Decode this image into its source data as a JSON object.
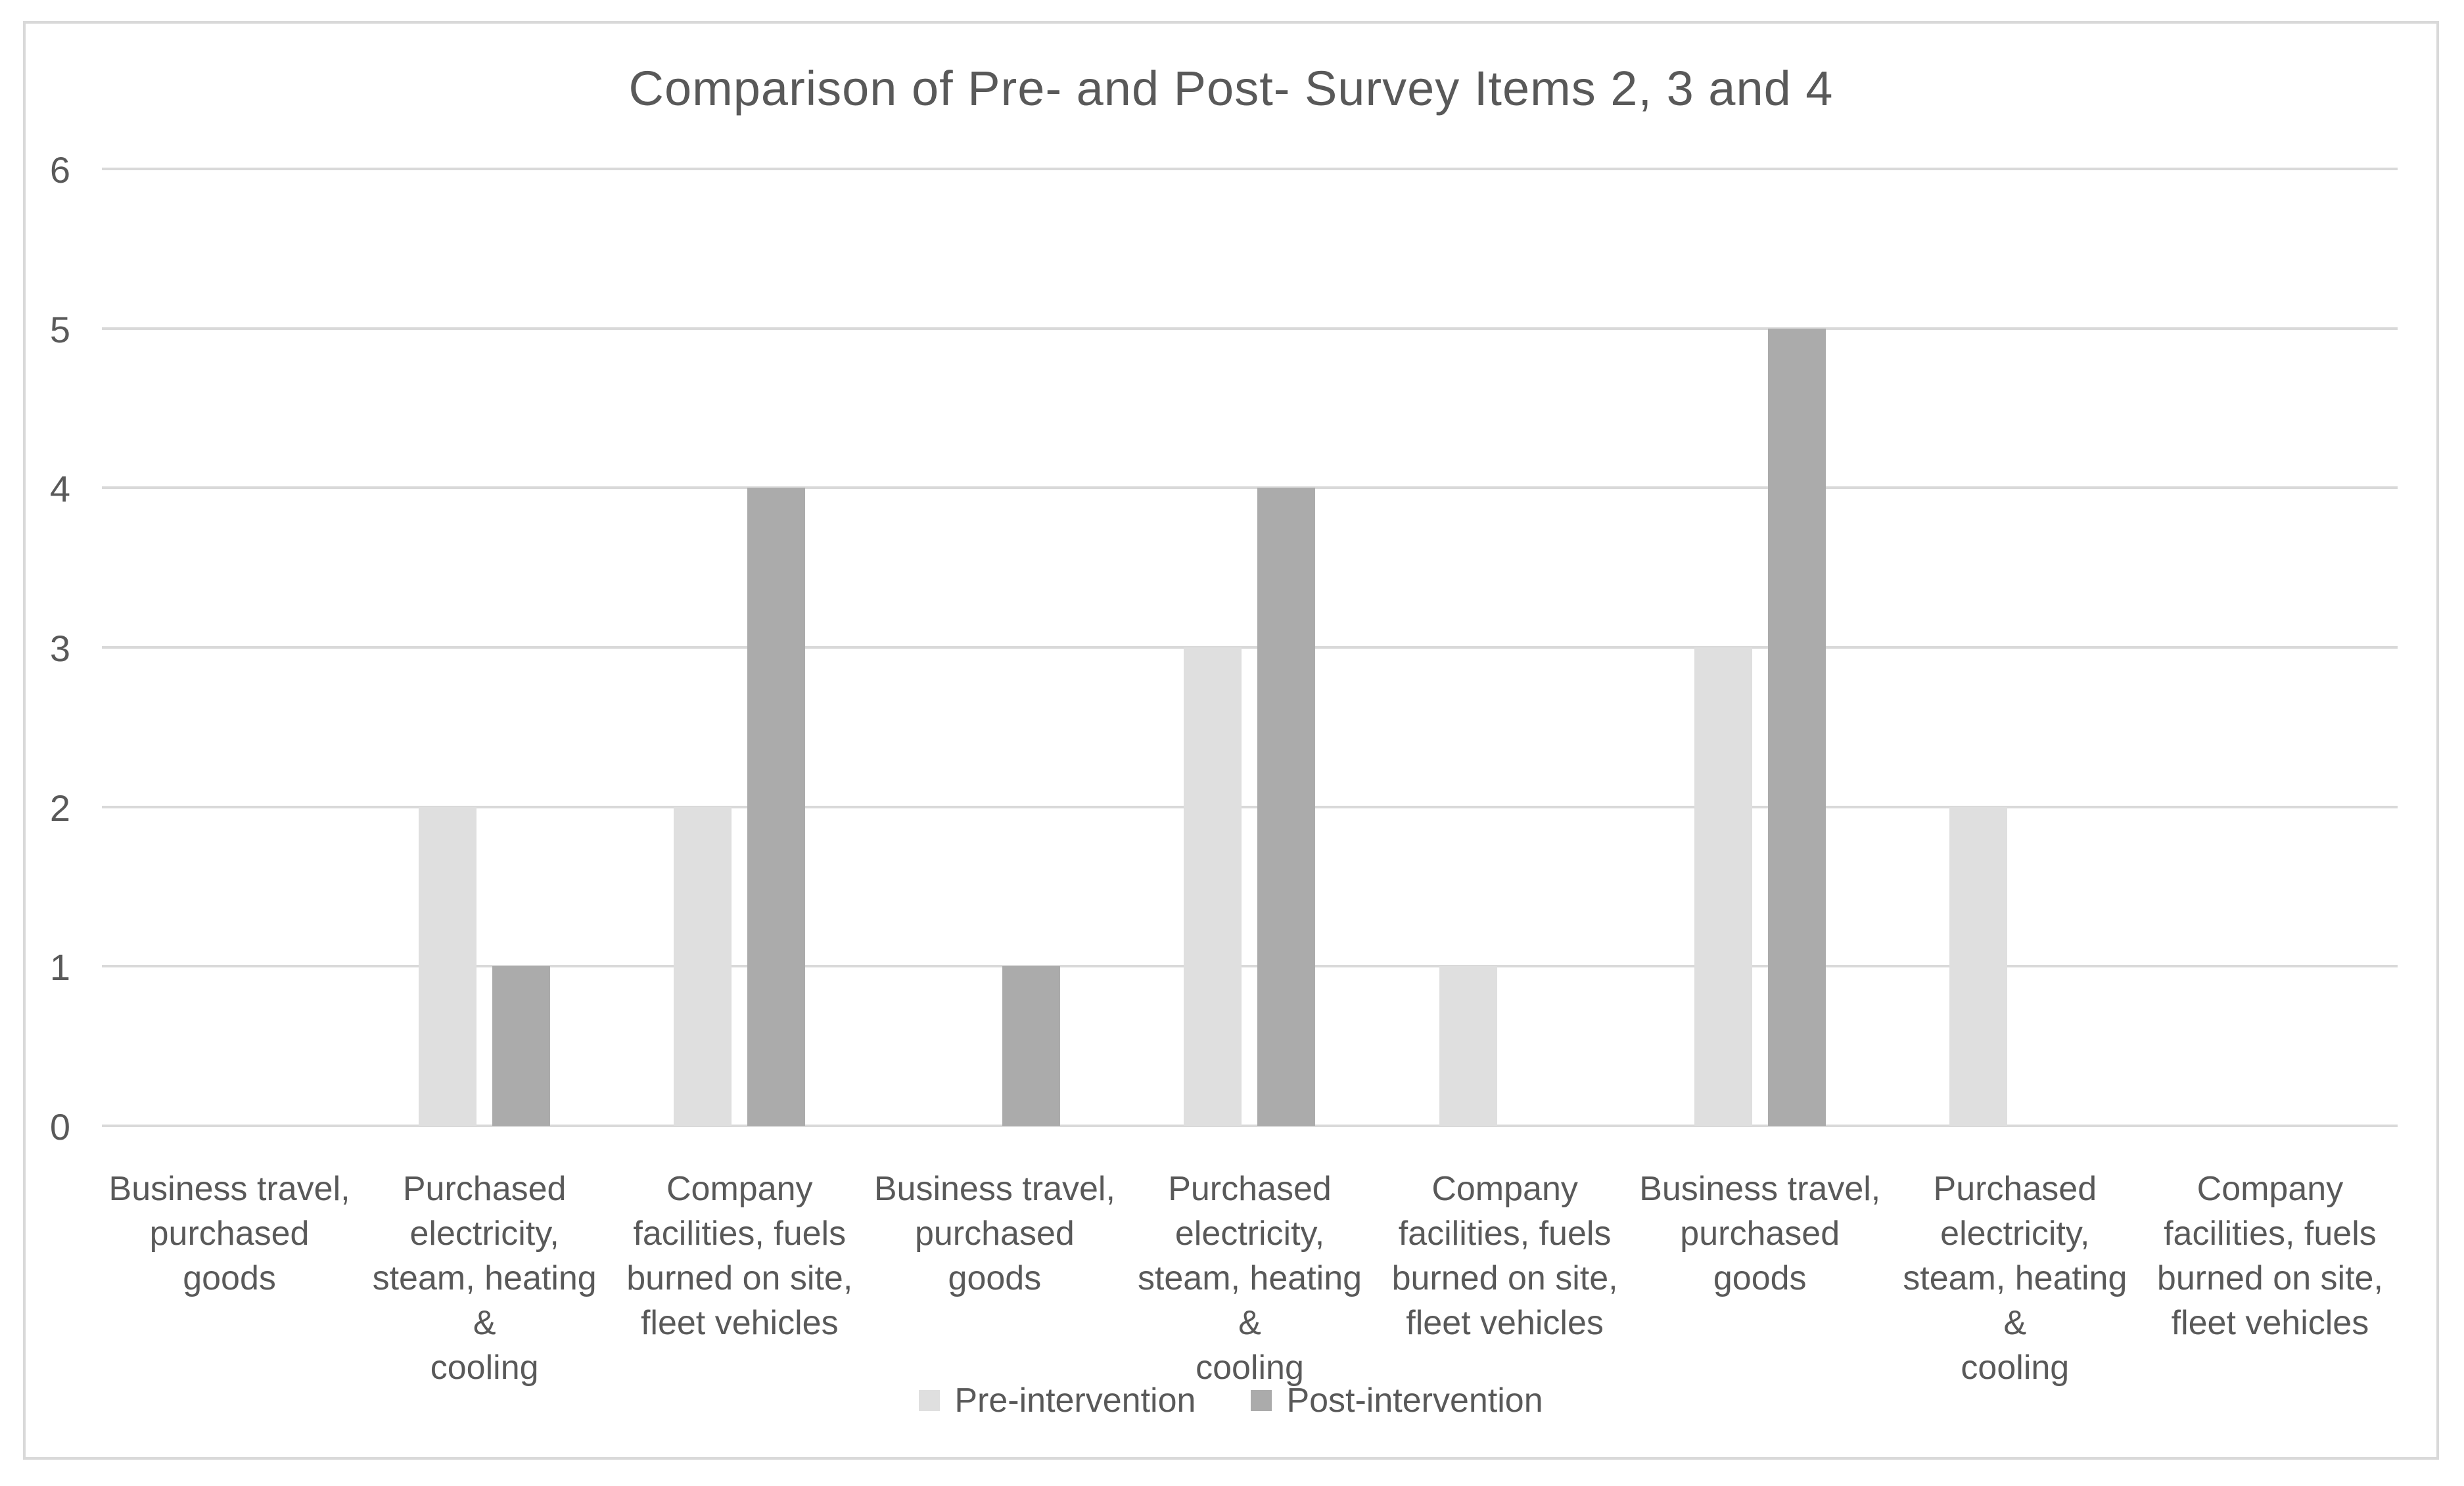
{
  "chart_data": {
    "type": "bar",
    "title": "Comparison of Pre- and Post- Survey Items 2, 3 and 4",
    "categories": [
      "Business travel,\npurchased goods",
      "Purchased\nelectricity,\nsteam, heating &\ncooling",
      "Company\nfacilities, fuels\nburned on site,\nfleet vehicles",
      "Business travel,\npurchased goods",
      "Purchased\nelectricity,\nsteam, heating &\ncooling",
      "Company\nfacilities, fuels\nburned on site,\nfleet vehicles",
      "Business travel,\npurchased goods",
      "Purchased\nelectricity,\nsteam, heating &\ncooling",
      "Company\nfacilities, fuels\nburned on site,\nfleet vehicles"
    ],
    "series": [
      {
        "name": "Pre-intervention",
        "color": "#dfdfdf",
        "values": [
          0,
          2,
          2,
          0,
          3,
          1,
          3,
          2,
          0
        ]
      },
      {
        "name": "Post-intervention",
        "color": "#ababab",
        "values": [
          0,
          1,
          4,
          1,
          4,
          0,
          5,
          0,
          0
        ]
      }
    ],
    "xlabel": "",
    "ylabel": "",
    "ylim": [
      0,
      6
    ],
    "yticks": [
      0,
      1,
      2,
      3,
      4,
      5,
      6
    ],
    "grid": true,
    "legend_position": "bottom",
    "text_color": "#595959",
    "gridline_color": "#d9d9d9",
    "frame_border_color": "#d9d9d9",
    "background_color": "#ffffff"
  }
}
